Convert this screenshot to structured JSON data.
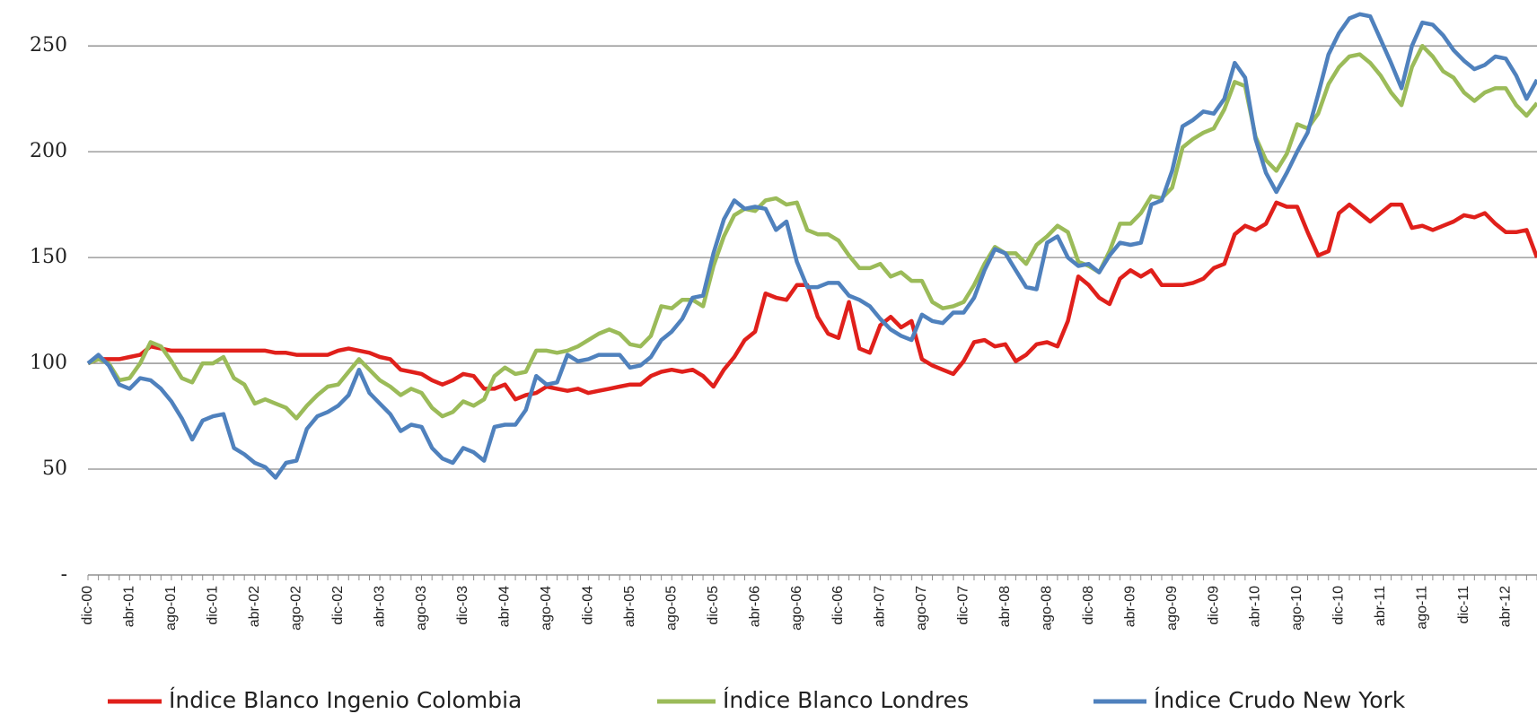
{
  "chart_data": {
    "type": "line",
    "categories": [
      "dic-00",
      null,
      null,
      null,
      "abr-01",
      null,
      null,
      null,
      "ago-01",
      null,
      null,
      null,
      "dic-01",
      null,
      null,
      null,
      "abr-02",
      null,
      null,
      null,
      "ago-02",
      null,
      null,
      null,
      "dic-02",
      null,
      null,
      null,
      "abr-03",
      null,
      null,
      null,
      "ago-03",
      null,
      null,
      null,
      "dic-03",
      null,
      null,
      null,
      "abr-04",
      null,
      null,
      null,
      "ago-04",
      null,
      null,
      null,
      "dic-04",
      null,
      null,
      null,
      "abr-05",
      null,
      null,
      null,
      "ago-05",
      null,
      null,
      null,
      "dic-05",
      null,
      null,
      null,
      "abr-06",
      null,
      null,
      null,
      "ago-06",
      null,
      null,
      null,
      "dic-06",
      null,
      null,
      null,
      "abr-07",
      null,
      null,
      null,
      "ago-07",
      null,
      null,
      null,
      "dic-07",
      null,
      null,
      null,
      "abr-08",
      null,
      null,
      null,
      "ago-08",
      null,
      null,
      null,
      "dic-08",
      null,
      null,
      null,
      "abr-09",
      null,
      null,
      null,
      "ago-09",
      null,
      null,
      null,
      "dic-09",
      null,
      null,
      null,
      "abr-10",
      null,
      null,
      null,
      "ago-10",
      null,
      null,
      null,
      "dic-10",
      null,
      null,
      null,
      "abr-11",
      null,
      null,
      null,
      "ago-11",
      null,
      null,
      null,
      "dic-11",
      null,
      null,
      null,
      "abr-12",
      null,
      null,
      null
    ],
    "series": [
      {
        "name": "Índice Blanco Ingenio Colombia",
        "color": "#e0201b",
        "values": [
          100,
          102,
          102,
          102,
          103,
          104,
          108,
          107,
          106,
          106,
          106,
          106,
          106,
          106,
          106,
          106,
          106,
          106,
          105,
          105,
          104,
          104,
          104,
          104,
          106,
          107,
          106,
          105,
          103,
          102,
          97,
          96,
          95,
          92,
          90,
          92,
          95,
          94,
          88,
          88,
          90,
          83,
          85,
          86,
          89,
          88,
          87,
          88,
          86,
          87,
          88,
          89,
          90,
          90,
          94,
          96,
          97,
          96,
          97,
          94,
          89,
          97,
          103,
          111,
          115,
          133,
          131,
          130,
          137,
          137,
          122,
          114,
          112,
          129,
          107,
          105,
          118,
          122,
          117,
          120,
          102,
          99,
          97,
          95,
          101,
          110,
          111,
          108,
          109,
          101,
          104,
          109,
          110,
          108,
          120,
          141,
          137,
          131,
          128,
          140,
          144,
          141,
          144,
          137,
          137,
          137,
          138,
          140,
          145,
          147,
          161,
          165,
          163,
          166,
          176,
          174,
          174,
          162,
          151,
          153,
          171,
          175,
          171,
          167,
          171,
          175,
          175,
          164,
          165,
          163,
          165,
          167,
          170,
          169,
          171,
          166,
          162,
          162,
          163,
          150
        ]
      },
      {
        "name": "Índice Blanco Londres",
        "color": "#9bbb59",
        "values": [
          100,
          102,
          100,
          92,
          93,
          100,
          110,
          108,
          101,
          93,
          91,
          100,
          100,
          103,
          93,
          90,
          81,
          83,
          81,
          79,
          74,
          80,
          85,
          89,
          90,
          96,
          102,
          97,
          92,
          89,
          85,
          88,
          86,
          79,
          75,
          77,
          82,
          80,
          83,
          94,
          98,
          95,
          96,
          106,
          106,
          105,
          106,
          108,
          111,
          114,
          116,
          114,
          109,
          108,
          113,
          127,
          126,
          130,
          130,
          127,
          146,
          160,
          170,
          173,
          172,
          177,
          178,
          175,
          176,
          163,
          161,
          161,
          158,
          151,
          145,
          145,
          147,
          141,
          143,
          139,
          139,
          129,
          126,
          127,
          129,
          137,
          147,
          155,
          152,
          152,
          147,
          156,
          160,
          165,
          162,
          148,
          146,
          143,
          153,
          166,
          166,
          171,
          179,
          178,
          183,
          202,
          206,
          209,
          211,
          220,
          233,
          231,
          207,
          196,
          191,
          199,
          213,
          211,
          218,
          232,
          240,
          245,
          246,
          242,
          236,
          228,
          222,
          240,
          250,
          245,
          238,
          235,
          228,
          224,
          228,
          230,
          230,
          222,
          217,
          223
        ]
      },
      {
        "name": "Índice Crudo New York",
        "color": "#4f81bd",
        "values": [
          100,
          104,
          99,
          90,
          88,
          93,
          92,
          88,
          82,
          74,
          64,
          73,
          75,
          76,
          60,
          57,
          53,
          51,
          46,
          53,
          54,
          69,
          75,
          77,
          80,
          85,
          97,
          86,
          81,
          76,
          68,
          71,
          70,
          60,
          55,
          53,
          60,
          58,
          54,
          70,
          71,
          71,
          78,
          94,
          90,
          91,
          104,
          101,
          102,
          104,
          104,
          104,
          98,
          99,
          103,
          111,
          115,
          121,
          131,
          132,
          152,
          168,
          177,
          173,
          174,
          173,
          163,
          167,
          148,
          136,
          136,
          138,
          138,
          132,
          130,
          127,
          121,
          116,
          113,
          111,
          123,
          120,
          119,
          124,
          124,
          131,
          144,
          154,
          152,
          144,
          136,
          135,
          157,
          160,
          150,
          146,
          147,
          143,
          151,
          157,
          156,
          157,
          175,
          177,
          191,
          212,
          215,
          219,
          218,
          225,
          242,
          235,
          206,
          190,
          181,
          190,
          200,
          209,
          227,
          246,
          256,
          263,
          265,
          264,
          253,
          242,
          230,
          250,
          261,
          260,
          255,
          248,
          243,
          239,
          241,
          245,
          244,
          236,
          225,
          234
        ]
      }
    ],
    "ylim": [
      0,
      270
    ],
    "yticks": [
      {
        "value": 0,
        "label": "-"
      },
      50,
      100,
      150,
      200,
      250
    ],
    "grid": true
  }
}
